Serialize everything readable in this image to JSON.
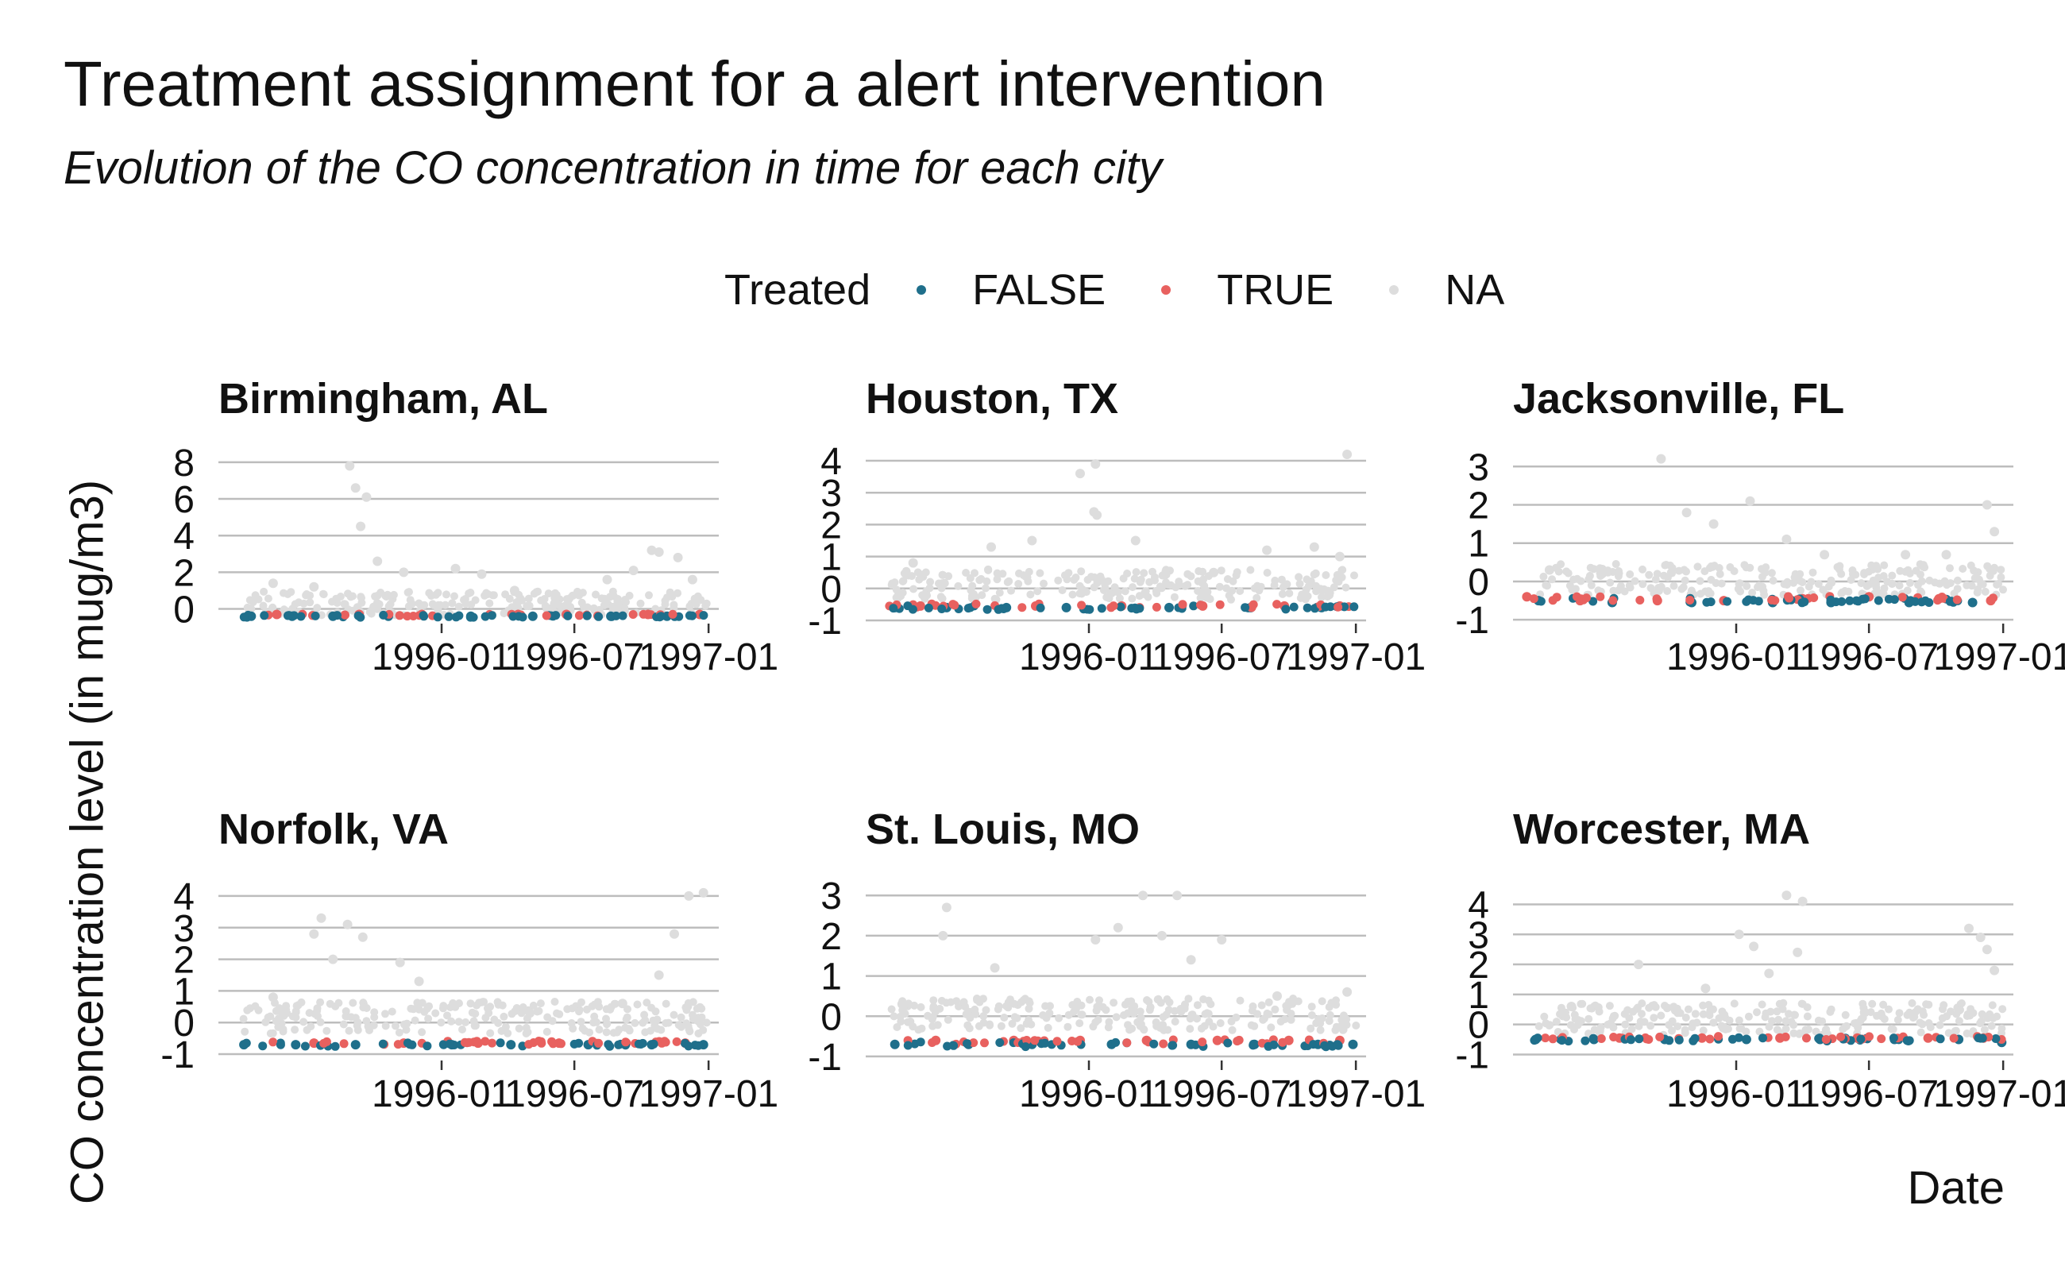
{
  "chart_data": {
    "type": "scatter",
    "title": "Treatment assignment for a alert intervention",
    "subtitle": "Evolution of the CO concentration in time for each city",
    "xlabel": "Date",
    "ylabel": "CO concentration level (in mug/m3)",
    "x_ticks": [
      "1996-01",
      "1996-07",
      "1997-01"
    ],
    "x_range": [
      "1995-03-01",
      "1997-01-15"
    ],
    "legend": {
      "title": "Treated",
      "position": "top",
      "entries": [
        {
          "label": "FALSE",
          "color": "#1f6f8b"
        },
        {
          "label": "TRUE",
          "color": "#e8615f"
        },
        {
          "label": "NA",
          "color": "#dddddd"
        }
      ]
    },
    "grid": "horizontal-major",
    "facets": [
      {
        "name": "Birmingham, AL",
        "y_ticks": [
          "0",
          "2",
          "4",
          "6",
          "8"
        ],
        "ylim": [
          -0.8,
          8.6
        ],
        "series": [
          {
            "name": "FALSE",
            "points": [
              [
                "1995-04-15",
                -0.4
              ],
              [
                "1995-06-10",
                -0.4
              ],
              [
                "1995-08-05",
                -0.4
              ],
              [
                "1995-10-20",
                -0.4
              ],
              [
                "1996-02-10",
                -0.4
              ],
              [
                "1996-05-05",
                -0.4
              ],
              [
                "1996-08-20",
                -0.4
              ],
              [
                "1996-11-05",
                -0.4
              ]
            ]
          },
          {
            "name": "TRUE",
            "points": [
              [
                "1995-05-20",
                -0.3
              ],
              [
                "1995-09-10",
                -0.3
              ],
              [
                "1995-12-05",
                -0.3
              ],
              [
                "1996-04-15",
                -0.3
              ],
              [
                "1996-06-20",
                -0.3
              ],
              [
                "1996-10-10",
                -0.3
              ],
              [
                "1996-12-20",
                -0.3
              ]
            ]
          },
          {
            "name": "NA",
            "points": [
              [
                "1995-08-28",
                7.8
              ],
              [
                "1995-09-05",
                6.6
              ],
              [
                "1995-09-20",
                6.1
              ],
              [
                "1995-09-12",
                4.5
              ],
              [
                "1995-10-05",
                2.6
              ],
              [
                "1995-11-10",
                2.0
              ],
              [
                "1996-01-20",
                2.2
              ],
              [
                "1996-02-25",
                1.9
              ],
              [
                "1996-04-10",
                1.0
              ],
              [
                "1996-06-05",
                0.6
              ],
              [
                "1996-08-15",
                1.6
              ],
              [
                "1996-09-20",
                2.1
              ],
              [
                "1996-10-15",
                3.2
              ],
              [
                "1996-10-25",
                3.1
              ],
              [
                "1996-11-20",
                2.8
              ],
              [
                "1996-12-10",
                1.6
              ],
              [
                "1995-05-15",
                1.4
              ],
              [
                "1995-07-10",
                1.2
              ]
            ]
          }
        ]
      },
      {
        "name": "Houston, TX",
        "y_ticks": [
          "-1",
          "0",
          "1",
          "2",
          "3",
          "4"
        ],
        "ylim": [
          -1.1,
          4.3
        ],
        "series": [
          {
            "name": "FALSE",
            "points": [
              [
                "1995-04-10",
                -0.6
              ],
              [
                "1995-06-20",
                -0.6
              ],
              [
                "1995-09-10",
                -0.6
              ],
              [
                "1995-12-01",
                -0.6
              ],
              [
                "1996-04-20",
                -0.6
              ],
              [
                "1996-08-10",
                -0.6
              ],
              [
                "1996-11-15",
                -0.6
              ]
            ]
          },
          {
            "name": "TRUE",
            "points": [
              [
                "1995-05-15",
                -0.55
              ],
              [
                "1995-10-20",
                -0.55
              ],
              [
                "1996-02-15",
                -0.55
              ],
              [
                "1996-06-05",
                -0.55
              ],
              [
                "1996-09-25",
                -0.55
              ],
              [
                "1996-12-10",
                -0.55
              ]
            ]
          },
          {
            "name": "NA",
            "points": [
              [
                "1995-12-20",
                3.6
              ],
              [
                "1996-01-10",
                3.9
              ],
              [
                "1996-01-08",
                2.4
              ],
              [
                "1996-01-12",
                2.3
              ],
              [
                "1995-10-15",
                1.5
              ],
              [
                "1995-08-20",
                1.3
              ],
              [
                "1996-03-05",
                1.5
              ],
              [
                "1996-06-20",
                0.5
              ],
              [
                "1996-09-01",
                1.2
              ],
              [
                "1996-11-05",
                1.3
              ],
              [
                "1996-12-20",
                4.2
              ],
              [
                "1996-12-10",
                1.0
              ],
              [
                "1995-05-05",
                0.8
              ]
            ]
          }
        ]
      },
      {
        "name": "Jacksonville, FL",
        "y_ticks": [
          "-1",
          "0",
          "1",
          "2",
          "3"
        ],
        "ylim": [
          -1.1,
          3.4
        ],
        "series": [
          {
            "name": "FALSE",
            "points": [
              [
                "1995-04-05",
                -0.5
              ],
              [
                "1995-07-15",
                -0.55
              ],
              [
                "1995-11-01",
                -0.55
              ],
              [
                "1996-02-20",
                -0.55
              ],
              [
                "1996-05-10",
                -0.55
              ],
              [
                "1996-08-25",
                -0.55
              ],
              [
                "1996-11-20",
                -0.55
              ]
            ]
          },
          {
            "name": "TRUE",
            "points": [
              [
                "1995-03-20",
                -0.4
              ],
              [
                "1995-06-01",
                -0.5
              ],
              [
                "1995-09-15",
                -0.5
              ],
              [
                "1995-12-15",
                -0.5
              ],
              [
                "1996-04-01",
                -0.45
              ],
              [
                "1996-07-01",
                -0.4
              ],
              [
                "1996-10-05",
                -0.45
              ],
              [
                "1996-12-15",
                -0.5
              ]
            ]
          },
          {
            "name": "NA",
            "points": [
              [
                "1995-09-20",
                3.2
              ],
              [
                "1995-10-25",
                1.8
              ],
              [
                "1995-12-01",
                1.5
              ],
              [
                "1996-01-20",
                2.1
              ],
              [
                "1996-03-10",
                1.1
              ],
              [
                "1996-05-01",
                0.7
              ],
              [
                "1996-08-20",
                0.7
              ],
              [
                "1996-10-15",
                0.7
              ],
              [
                "1996-12-10",
                2.0
              ],
              [
                "1996-12-20",
                1.3
              ],
              [
                "1995-04-20",
                0.3
              ],
              [
                "1995-07-01",
                0.2
              ]
            ]
          }
        ]
      },
      {
        "name": "Norfolk, VA",
        "y_ticks": [
          "-1",
          "0",
          "1",
          "2",
          "3",
          "4"
        ],
        "ylim": [
          -1.2,
          4.4
        ],
        "series": [
          {
            "name": "FALSE",
            "points": [
              [
                "1995-04-05",
                -0.7
              ],
              [
                "1995-06-15",
                -0.7
              ],
              [
                "1995-09-05",
                -0.7
              ],
              [
                "1996-01-15",
                -0.7
              ],
              [
                "1996-04-05",
                -0.7
              ],
              [
                "1996-07-20",
                -0.7
              ],
              [
                "1996-10-15",
                -0.7
              ],
              [
                "1996-12-25",
                -0.7
              ]
            ]
          },
          {
            "name": "TRUE",
            "points": [
              [
                "1995-07-10",
                -0.65
              ],
              [
                "1995-11-10",
                -0.65
              ],
              [
                "1996-02-20",
                -0.65
              ],
              [
                "1996-06-10",
                -0.65
              ],
              [
                "1996-09-10",
                -0.65
              ],
              [
                "1996-11-30",
                -0.65
              ]
            ]
          },
          {
            "name": "NA",
            "points": [
              [
                "1995-07-20",
                3.3
              ],
              [
                "1995-08-25",
                3.1
              ],
              [
                "1995-09-15",
                2.7
              ],
              [
                "1995-07-10",
                2.8
              ],
              [
                "1995-08-05",
                2.0
              ],
              [
                "1995-11-05",
                1.9
              ],
              [
                "1995-12-01",
                1.3
              ],
              [
                "1996-05-01",
                0.3
              ],
              [
                "1996-09-05",
                0.6
              ],
              [
                "1996-10-25",
                1.5
              ],
              [
                "1996-11-15",
                2.8
              ],
              [
                "1996-12-05",
                4.0
              ],
              [
                "1996-12-25",
                4.1
              ],
              [
                "1995-05-15",
                0.8
              ]
            ]
          }
        ]
      },
      {
        "name": "St. Louis, MO",
        "y_ticks": [
          "-1",
          "0",
          "1",
          "2",
          "3"
        ],
        "ylim": [
          -1.1,
          3.3
        ],
        "series": [
          {
            "name": "FALSE",
            "points": [
              [
                "1995-04-10",
                -0.7
              ],
              [
                "1995-07-20",
                -0.7
              ],
              [
                "1995-10-15",
                -0.7
              ],
              [
                "1996-02-01",
                -0.7
              ],
              [
                "1996-05-20",
                -0.7
              ],
              [
                "1996-08-15",
                -0.7
              ],
              [
                "1996-11-10",
                -0.7
              ],
              [
                "1996-12-28",
                -0.7
              ]
            ]
          },
          {
            "name": "TRUE",
            "points": [
              [
                "1995-06-05",
                -0.6
              ],
              [
                "1995-09-20",
                -0.6
              ],
              [
                "1995-12-20",
                -0.6
              ],
              [
                "1996-03-20",
                -0.6
              ],
              [
                "1996-06-25",
                -0.6
              ],
              [
                "1996-10-01",
                -0.6
              ],
              [
                "1996-12-10",
                -0.6
              ]
            ]
          },
          {
            "name": "NA",
            "points": [
              [
                "1995-06-20",
                2.7
              ],
              [
                "1995-06-15",
                2.0
              ],
              [
                "1995-08-25",
                1.2
              ],
              [
                "1996-01-10",
                1.9
              ],
              [
                "1996-02-10",
                2.2
              ],
              [
                "1996-03-15",
                3.0
              ],
              [
                "1996-04-10",
                2.0
              ],
              [
                "1996-05-01",
                3.0
              ],
              [
                "1996-05-20",
                1.4
              ],
              [
                "1996-07-01",
                1.9
              ],
              [
                "1996-09-15",
                0.5
              ],
              [
                "1996-12-20",
                0.6
              ],
              [
                "1995-04-20",
                0.3
              ]
            ]
          }
        ]
      },
      {
        "name": "Worcester, MA",
        "y_ticks": [
          "-1",
          "0",
          "1",
          "2",
          "3",
          "4"
        ],
        "ylim": [
          -1.2,
          4.7
        ],
        "series": [
          {
            "name": "FALSE",
            "points": [
              [
                "1995-04-01",
                -0.5
              ],
              [
                "1995-06-20",
                -0.5
              ],
              [
                "1995-09-25",
                -0.5
              ],
              [
                "1996-01-15",
                -0.5
              ],
              [
                "1996-04-25",
                -0.5
              ],
              [
                "1996-08-05",
                -0.5
              ],
              [
                "1996-11-01",
                -0.5
              ],
              [
                "1996-12-30",
                -0.6
              ]
            ]
          },
          {
            "name": "TRUE",
            "points": [
              [
                "1995-07-25",
                -0.45
              ],
              [
                "1995-11-15",
                -0.45
              ],
              [
                "1996-03-01",
                -0.45
              ],
              [
                "1996-06-15",
                -0.45
              ],
              [
                "1996-09-20",
                -0.45
              ],
              [
                "1996-12-05",
                -0.45
              ]
            ]
          },
          {
            "name": "NA",
            "points": [
              [
                "1995-08-20",
                2.0
              ],
              [
                "1996-01-05",
                3.0
              ],
              [
                "1996-01-25",
                2.6
              ],
              [
                "1996-03-10",
                4.3
              ],
              [
                "1996-04-01",
                4.1
              ],
              [
                "1996-03-25",
                2.4
              ],
              [
                "1996-02-15",
                1.7
              ],
              [
                "1995-11-20",
                1.2
              ],
              [
                "1996-06-25",
                0.4
              ],
              [
                "1996-11-15",
                3.2
              ],
              [
                "1996-12-01",
                2.9
              ],
              [
                "1996-12-10",
                2.5
              ],
              [
                "1996-12-20",
                1.8
              ],
              [
                "1995-05-20",
                0.6
              ]
            ]
          }
        ]
      }
    ]
  }
}
